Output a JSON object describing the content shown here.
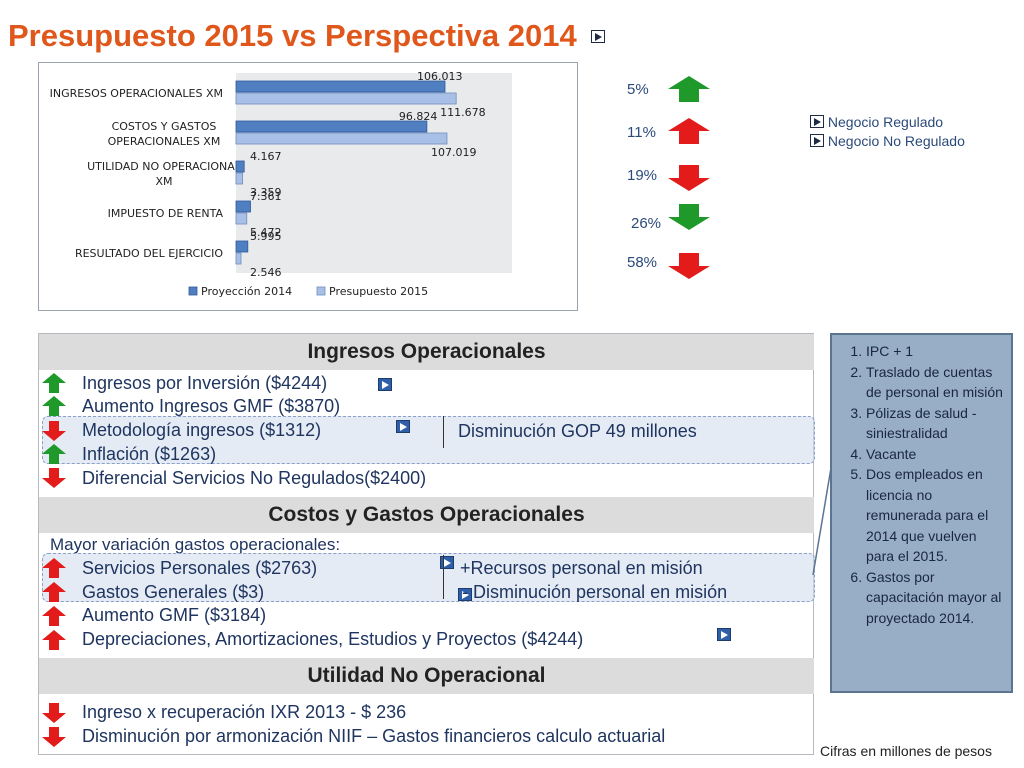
{
  "title": "Presupuesto 2015 vs Perspectiva 2014",
  "colors": {
    "title": "#e0571b",
    "series1": "#4f7fc0",
    "series2": "#a9c0e6",
    "arrow_green": "#1f9a2a",
    "arrow_red": "#e31b1b"
  },
  "chart_data": {
    "type": "bar",
    "orientation": "horizontal",
    "categories": [
      "INGRESOS OPERACIONALES XM",
      "COSTOS Y GASTOS OPERACIONALES XM",
      "UTILIDAD NO OPERACIONAL XM",
      "IMPUESTO DE RENTA",
      "RESULTADO DEL EJERCICIO"
    ],
    "category_lines": [
      [
        "INGRESOS OPERACIONALES XM"
      ],
      [
        "COSTOS Y GASTOS",
        "OPERACIONALES XM"
      ],
      [
        "UTILIDAD NO OPERACIONAL",
        "XM"
      ],
      [
        "IMPUESTO DE RENTA"
      ],
      [
        "RESULTADO DEL EJERCICIO"
      ]
    ],
    "series": [
      {
        "name": "Proyección 2014",
        "values": [
          106.013,
          96.824,
          4.167,
          7.361,
          5.995
        ],
        "labels": [
          "106.013",
          "96.824",
          "4.167",
          "7.361",
          "5.995"
        ]
      },
      {
        "name": "Presupuesto 2015",
        "values": [
          111.678,
          107.019,
          3.359,
          5.472,
          2.546
        ],
        "labels": [
          "111.678",
          "107.019",
          "3.359",
          "5.472",
          "2.546"
        ]
      }
    ],
    "xlim": [
      0,
      140
    ],
    "legend": "bottom",
    "grid": false
  },
  "variations": [
    {
      "label": "5%",
      "direction": "up",
      "color": "green"
    },
    {
      "label": "11%",
      "direction": "up",
      "color": "red"
    },
    {
      "label": "19%",
      "direction": "down",
      "color": "red"
    },
    {
      "label": "26%",
      "direction": "down",
      "color": "green"
    },
    {
      "label": "58%",
      "direction": "down",
      "color": "red"
    }
  ],
  "side_legend": {
    "regulated": "Negocio Regulado",
    "non_regulated": "Negocio No Regulado"
  },
  "ingresos": {
    "header": "Ingresos Operacionales",
    "items": [
      {
        "text": "Ingresos por Inversión ($4244)",
        "arrow": "up-green"
      },
      {
        "text": "Aumento Ingresos GMF ($3870)",
        "arrow": "up-green"
      },
      {
        "text": "Metodología ingresos ($1312)",
        "arrow": "down-red"
      },
      {
        "text": "Inflación ($1263)",
        "arrow": "up-green"
      },
      {
        "text": "Diferencial Servicios No Regulados($2400)",
        "arrow": "down-red"
      }
    ],
    "note": "Disminución GOP 49 millones"
  },
  "costos": {
    "header": "Costos y Gastos Operacionales",
    "intro": "Mayor variación gastos operacionales:",
    "items": [
      {
        "text": "Servicios Personales ($2763)",
        "arrow": "up-red"
      },
      {
        "text": "Gastos Generales ($3)",
        "arrow": "up-red"
      },
      {
        "text": "Aumento GMF ($3184)",
        "arrow": "up-red"
      },
      {
        "text": "Depreciaciones, Amortizaciones, Estudios y Proyectos ($4244)",
        "arrow": "up-red"
      }
    ],
    "note1": "+Recursos personal en misión",
    "note2": "- Disminución personal en misión"
  },
  "utilidad": {
    "header": "Utilidad No Operacional",
    "items": [
      {
        "text": "Ingreso x recuperación IXR 2013 - $ 236",
        "arrow": "down-red"
      },
      {
        "text": "Disminución por armonización NIIF – Gastos financieros calculo actuarial",
        "arrow": "down-red"
      }
    ]
  },
  "notes": [
    "IPC + 1",
    "Traslado de cuentas de personal en misión",
    "Pólizas de salud - siniestralidad",
    "Vacante",
    "Dos empleados en licencia no remunerada para el 2014 que vuelven para el 2015.",
    "Gastos por capacitación mayor al proyectado 2014."
  ],
  "footer": "Cifras en millones de pesos"
}
